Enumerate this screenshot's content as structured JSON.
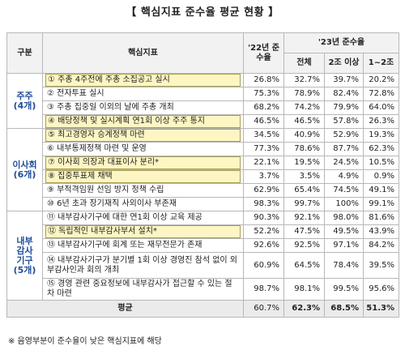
{
  "title": "【 핵심지표 준수율 평균 현황 】",
  "table": {
    "headers": {
      "group": "구분",
      "indicator": "핵심지표",
      "y22": "'22년 준수율",
      "y23": "'23년 준수율",
      "sub": [
        "전체",
        "2조 이상",
        "1~2조"
      ]
    },
    "groups": [
      {
        "name": "주주",
        "count": "(4개)",
        "rows": [
          {
            "label": "① 주총 4주전에 주총 소집공고 실시",
            "highlighted": true,
            "values": [
              "26.8%",
              "32.7%",
              "39.7%",
              "20.2%"
            ]
          },
          {
            "label": "② 전자투표 실시",
            "highlighted": false,
            "values": [
              "75.3%",
              "78.9%",
              "82.4%",
              "72.8%"
            ]
          },
          {
            "label": "③ 주총 집중일 이외의 날에 주총 개최",
            "highlighted": false,
            "values": [
              "68.2%",
              "74.2%",
              "79.9%",
              "64.0%"
            ]
          },
          {
            "label": "④ 배당정책 및 실시계획 연1회 이상 주주 통지",
            "highlighted": true,
            "values": [
              "46.5%",
              "46.5%",
              "57.8%",
              "26.3%"
            ]
          }
        ]
      },
      {
        "name": "이사회",
        "count": "(6개)",
        "rows": [
          {
            "label": "⑤ 최고경영자 승계정책 마련",
            "highlighted": true,
            "values": [
              "34.5%",
              "40.9%",
              "52.9%",
              "19.3%"
            ]
          },
          {
            "label": "⑥ 내부통제정책 마련 및 운영",
            "highlighted": false,
            "values": [
              "77.3%",
              "78.6%",
              "87.7%",
              "62.3%"
            ]
          },
          {
            "label": "⑦ 이사회 의장과 대표이사 분리*",
            "highlighted": true,
            "values": [
              "22.1%",
              "19.5%",
              "24.5%",
              "10.5%"
            ]
          },
          {
            "label": "⑧ 집중투표제 채택",
            "highlighted": true,
            "values": [
              "3.7%",
              "3.5%",
              "4.9%",
              "0.9%"
            ]
          },
          {
            "label": "⑨ 부적격임원 선임 방지 정책 수립",
            "highlighted": false,
            "values": [
              "62.9%",
              "65.4%",
              "74.5%",
              "49.1%"
            ]
          },
          {
            "label": "⑩ 6년 초과 장기재직 사외이사 부존재",
            "highlighted": false,
            "values": [
              "98.3%",
              "99.7%",
              "100%",
              "99.1%"
            ]
          }
        ]
      },
      {
        "name": "내부감사기구",
        "count": "(5개)",
        "rows": [
          {
            "label": "⑪ 내부감사기구에 대한 연1회 이상 교육 제공",
            "highlighted": false,
            "values": [
              "90.3%",
              "92.1%",
              "98.0%",
              "81.6%"
            ]
          },
          {
            "label": "⑫ 독립적인 내부감사부서 설치*",
            "highlighted": true,
            "values": [
              "52.2%",
              "47.5%",
              "49.5%",
              "43.9%"
            ]
          },
          {
            "label": "⑬ 내부감사기구에 회계 또는 재무전문가 존재",
            "highlighted": false,
            "values": [
              "92.6%",
              "92.5%",
              "97.1%",
              "84.2%"
            ]
          },
          {
            "label": "⑭ 내부감사기구가 분기별 1회 이상 경영진 참석 없이 외부감사인과 회의 개최",
            "highlighted": false,
            "values": [
              "60.9%",
              "64.5%",
              "78.4%",
              "39.5%"
            ]
          },
          {
            "label": "⑮ 경영 관련 중요정보에 내부감사가 접근할 수 있는 절차 마련",
            "highlighted": false,
            "values": [
              "98.7%",
              "98.1%",
              "99.5%",
              "95.6%"
            ]
          }
        ]
      }
    ],
    "average": {
      "label": "평균",
      "values": [
        "60.7%",
        "62.3%",
        "68.5%",
        "51.3%"
      ]
    }
  },
  "footnote": "※ 음영부분이 준수율이 낮은 핵심지표에 해당"
}
